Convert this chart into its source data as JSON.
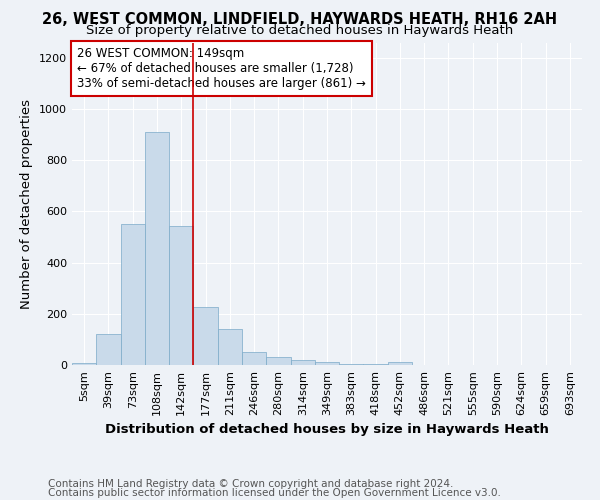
{
  "title1": "26, WEST COMMON, LINDFIELD, HAYWARDS HEATH, RH16 2AH",
  "title2": "Size of property relative to detached houses in Haywards Heath",
  "xlabel": "Distribution of detached houses by size in Haywards Heath",
  "ylabel": "Number of detached properties",
  "footnote1": "Contains HM Land Registry data © Crown copyright and database right 2024.",
  "footnote2": "Contains public sector information licensed under the Open Government Licence v3.0.",
  "bin_labels": [
    "5sqm",
    "39sqm",
    "73sqm",
    "108sqm",
    "142sqm",
    "177sqm",
    "211sqm",
    "246sqm",
    "280sqm",
    "314sqm",
    "349sqm",
    "383sqm",
    "418sqm",
    "452sqm",
    "486sqm",
    "521sqm",
    "555sqm",
    "590sqm",
    "624sqm",
    "659sqm",
    "693sqm"
  ],
  "bar_heights": [
    8,
    120,
    550,
    910,
    545,
    225,
    140,
    52,
    30,
    18,
    10,
    5,
    3,
    10,
    0,
    0,
    0,
    0,
    0,
    0,
    0
  ],
  "bar_color": "#c9daea",
  "bar_edge_color": "#7aaac8",
  "red_line_x": 4.5,
  "annotation_text": "26 WEST COMMON: 149sqm\n← 67% of detached houses are smaller (1,728)\n33% of semi-detached houses are larger (861) →",
  "annotation_box_color": "#ffffff",
  "annotation_box_edge": "#cc0000",
  "ylim": [
    0,
    1260
  ],
  "yticks": [
    0,
    200,
    400,
    600,
    800,
    1000,
    1200
  ],
  "background_color": "#eef2f7",
  "plot_bg_color": "#eef2f7",
  "grid_color": "#ffffff",
  "title_fontsize": 10.5,
  "subtitle_fontsize": 9.5,
  "axis_label_fontsize": 9.5,
  "tick_fontsize": 8,
  "footnote_fontsize": 7.5
}
